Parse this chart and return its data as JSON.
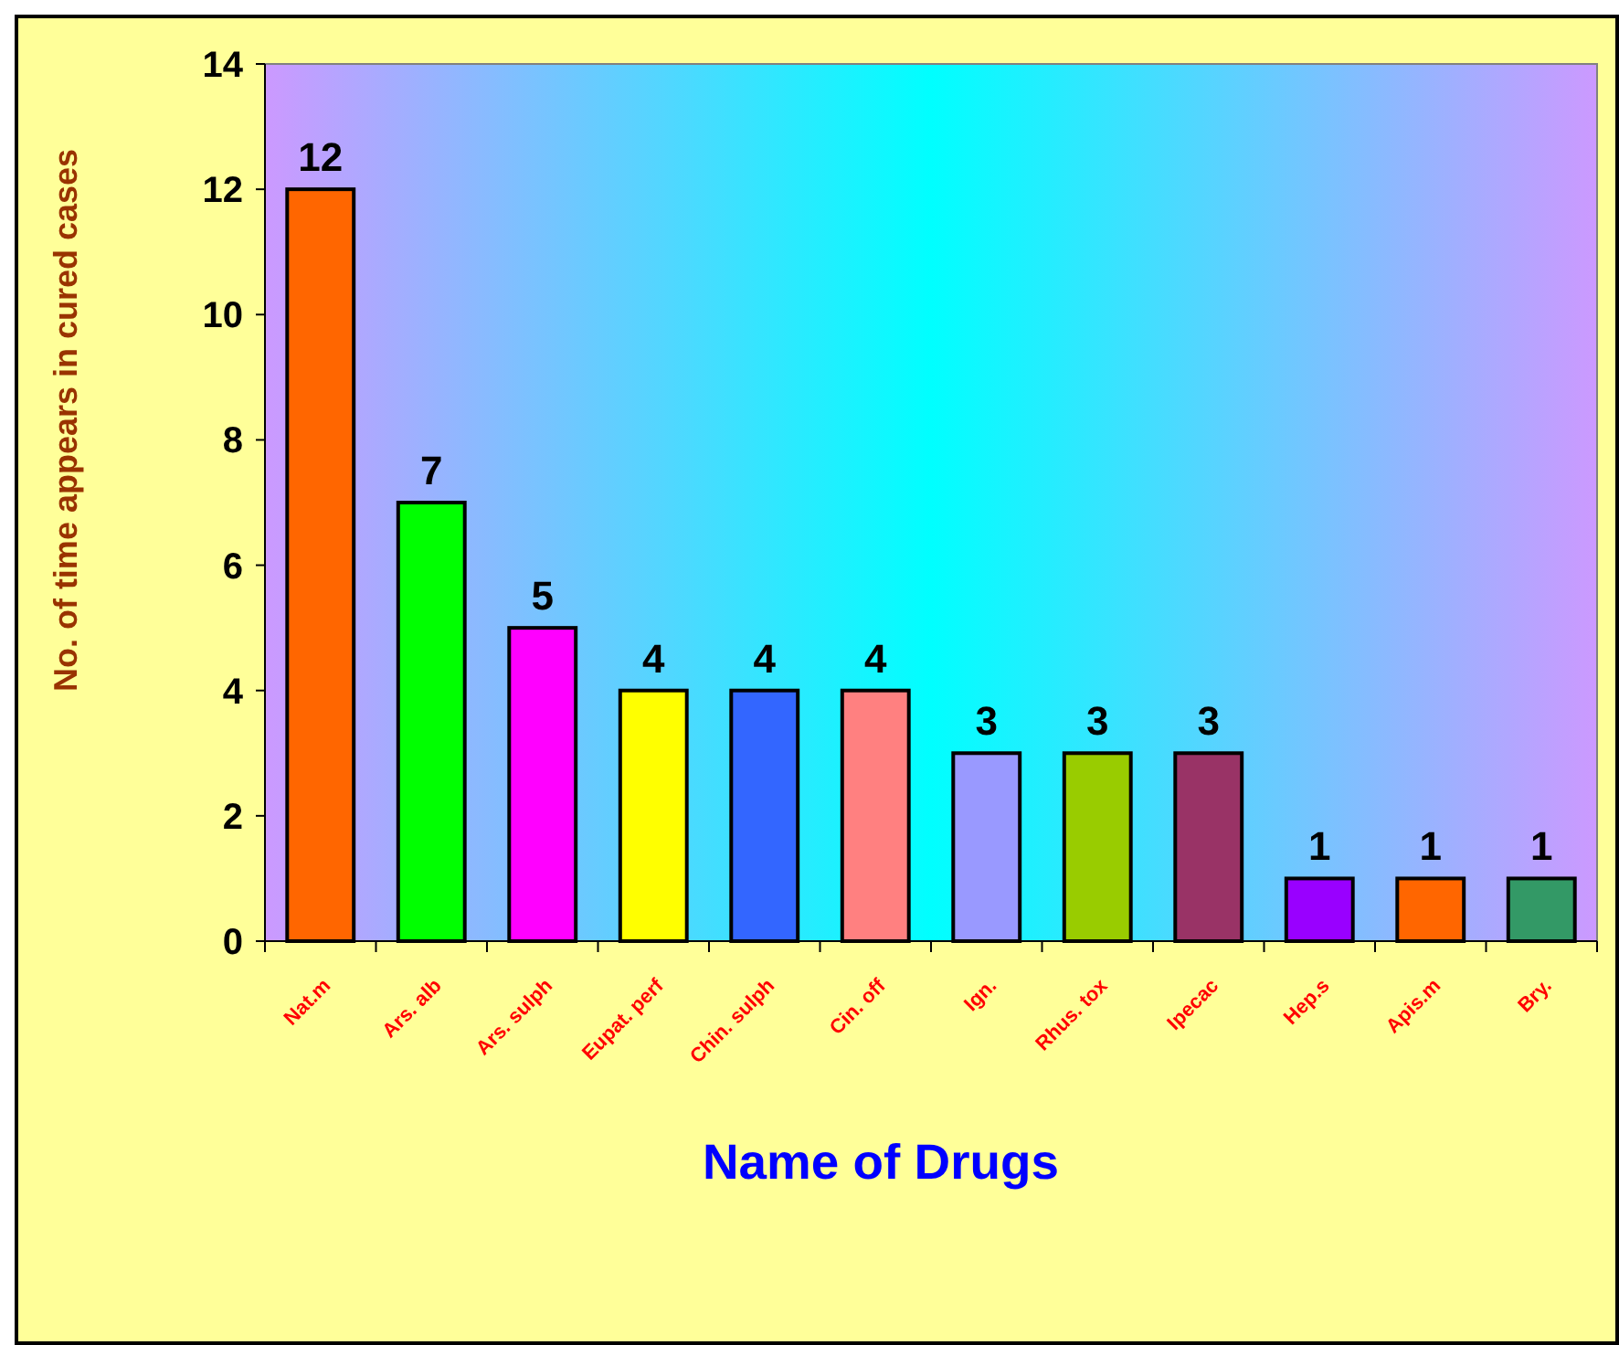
{
  "chart_data": {
    "type": "bar",
    "xlabel": "Name of Drugs",
    "ylabel": "No. of time appears in cured cases",
    "categories": [
      "Nat.m",
      "Ars. alb",
      "Ars. sulph",
      "Eupat. perf",
      "Chin. sulph",
      "Cin. off",
      "Ign.",
      "Rhus. tox",
      "Ipecac",
      "Hep.s",
      "Apis.m",
      "Bry."
    ],
    "values": [
      12,
      7,
      5,
      4,
      4,
      4,
      3,
      3,
      3,
      1,
      1,
      1
    ],
    "colors": [
      "#ff6600",
      "#00ff00",
      "#ff00ff",
      "#ffff00",
      "#3366ff",
      "#ff8080",
      "#9999ff",
      "#99cc00",
      "#993366",
      "#9900ff",
      "#ff6600",
      "#339966"
    ],
    "ylim": [
      0,
      14
    ],
    "yticks": [
      0,
      2,
      4,
      6,
      8,
      10,
      12,
      14
    ],
    "data_labels": true,
    "grid": false
  }
}
